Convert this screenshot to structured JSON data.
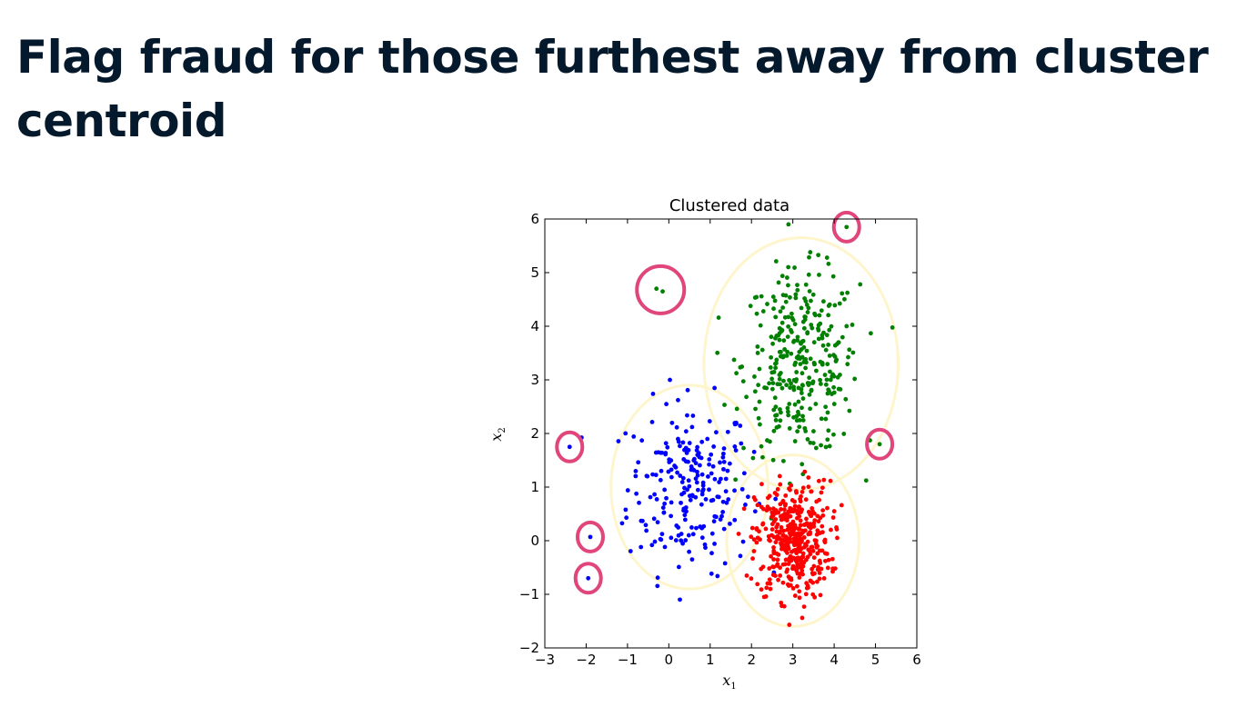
{
  "slide": {
    "title": "Flag fraud for those furthest away from cluster centroid"
  },
  "chart_data": {
    "type": "scatter",
    "title": "Clustered data",
    "xlabel": "x₁",
    "ylabel": "x₂",
    "xlim": [
      -3,
      6
    ],
    "ylim": [
      -2,
      6
    ],
    "xticks": [
      "−3",
      "−2",
      "−1",
      "0",
      "1",
      "2",
      "3",
      "4",
      "5",
      "6"
    ],
    "yticks": [
      "−2",
      "−1",
      "0",
      "1",
      "2",
      "3",
      "4",
      "5",
      "6"
    ],
    "grid": false,
    "clusters": [
      {
        "color": "#0000ff",
        "center": [
          0.5,
          1.0
        ],
        "spread": [
          0.75,
          0.8
        ],
        "count": 230,
        "boundary_radius": 1.9
      },
      {
        "color": "#008000",
        "center": [
          3.2,
          3.3
        ],
        "spread": [
          0.7,
          0.85
        ],
        "count": 330,
        "boundary_radius": 2.35
      },
      {
        "color": "#ff0000",
        "center": [
          3.0,
          0.0
        ],
        "spread": [
          0.45,
          0.55
        ],
        "count": 420,
        "boundary_radius": 1.6
      }
    ],
    "outliers": [
      {
        "x": 4.3,
        "y": 5.85,
        "color": "#008000"
      },
      {
        "x": -0.3,
        "y": 4.7,
        "color": "#008000"
      },
      {
        "x": -0.15,
        "y": 4.65,
        "color": "#008000"
      },
      {
        "x": 5.1,
        "y": 1.8,
        "color": "#008000"
      },
      {
        "x": -2.4,
        "y": 1.75,
        "color": "#0000ff"
      },
      {
        "x": -1.9,
        "y": 0.07,
        "color": "#0000ff"
      },
      {
        "x": -1.95,
        "y": -0.7,
        "color": "#0000ff"
      }
    ],
    "outlier_rings": [
      {
        "x": 4.3,
        "y": 5.85
      },
      {
        "x": -0.2,
        "y": 4.68
      },
      {
        "x": 5.1,
        "y": 1.8
      },
      {
        "x": -2.4,
        "y": 1.75
      },
      {
        "x": -1.9,
        "y": 0.07
      },
      {
        "x": -1.95,
        "y": -0.7
      }
    ],
    "ring_color": "#e0457b",
    "boundary_color": "#fff5cc"
  }
}
